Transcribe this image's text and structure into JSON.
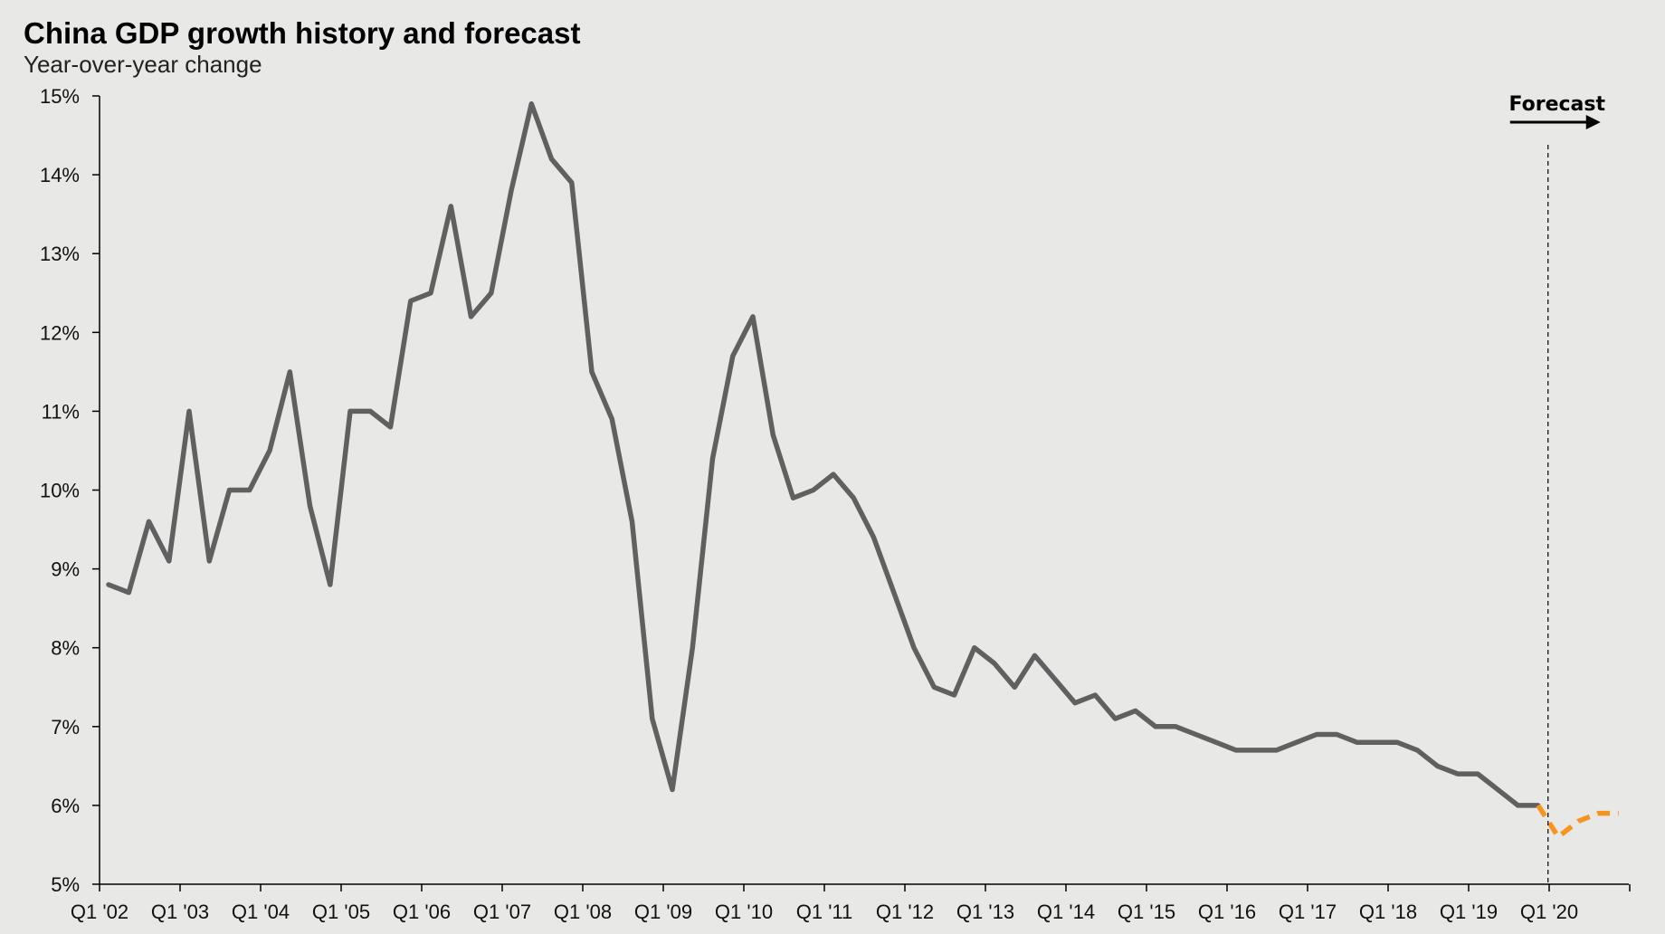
{
  "chart_data": {
    "type": "line",
    "title": "China GDP growth history and forecast",
    "subtitle": "Year-over-year change",
    "xlabel": "",
    "ylabel": "",
    "ylim": [
      5,
      15
    ],
    "y_ticks": [
      "5%",
      "6%",
      "7%",
      "8%",
      "9%",
      "10%",
      "11%",
      "12%",
      "13%",
      "14%",
      "15%"
    ],
    "x_tick_labels": [
      "Q1 '02",
      "Q1 '03",
      "Q1 '04",
      "Q1 '05",
      "Q1 '06",
      "Q1 '07",
      "Q1 '08",
      "Q1 '09",
      "Q1 '10",
      "Q1 '11",
      "Q1 '12",
      "Q1 '13",
      "Q1 '14",
      "Q1 '15",
      "Q1 '16",
      "Q1 '17",
      "Q1 '18",
      "Q1 '19",
      "Q1 '20"
    ],
    "grid": false,
    "colors": {
      "history": "#606060",
      "forecast": "#f7941d",
      "background": "#e8e8e7"
    },
    "series": [
      {
        "style": "solid",
        "values": [
          8.8,
          8.7,
          9.6,
          9.1,
          11.0,
          9.1,
          10.0,
          10.0,
          10.5,
          11.5,
          9.8,
          8.8,
          11.0,
          11.0,
          10.8,
          12.4,
          12.5,
          13.6,
          12.2,
          12.5,
          13.8,
          14.9,
          14.2,
          13.9,
          11.5,
          10.9,
          9.6,
          7.1,
          6.2,
          8.0,
          10.4,
          11.7,
          12.2,
          10.7,
          9.9,
          10.0,
          10.2,
          9.9,
          9.4,
          8.7,
          8.0,
          7.5,
          7.4,
          8.0,
          7.8,
          7.5,
          7.9,
          7.6,
          7.3,
          7.4,
          7.1,
          7.2,
          7.0,
          7.0,
          6.9,
          6.8,
          6.7,
          6.7,
          6.7,
          6.8,
          6.9,
          6.9,
          6.8,
          6.8,
          6.8,
          6.7,
          6.5,
          6.4,
          6.4,
          6.2,
          6.0,
          6.0
        ]
      },
      {
        "style": "dashed",
        "start_index": 71,
        "values": [
          6.0,
          5.6,
          5.8,
          5.9,
          5.9
        ]
      }
    ],
    "annotations": [
      {
        "text": "Forecast",
        "position": "top-right",
        "arrow": "right"
      }
    ]
  }
}
